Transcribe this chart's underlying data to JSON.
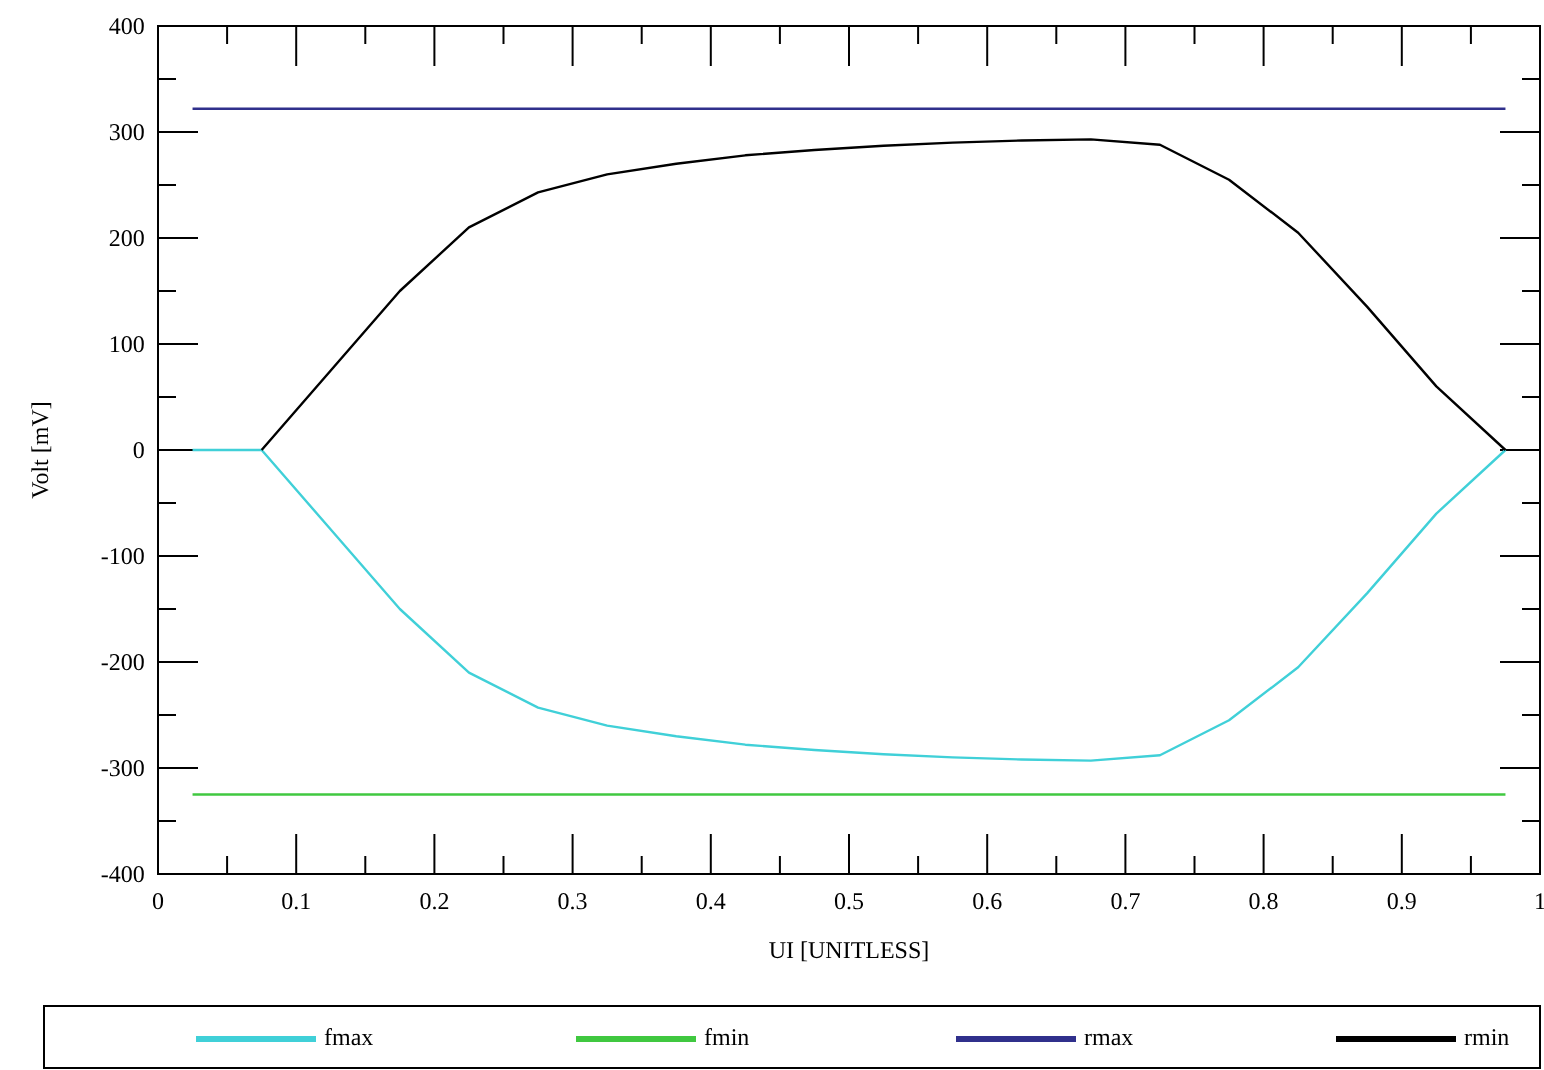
{
  "chart_data": {
    "type": "line",
    "xlabel": "UI [UNITLESS]",
    "ylabel": "Volt [mV]",
    "xlim": [
      0,
      1
    ],
    "ylim": [
      -400,
      400
    ],
    "xticks": [
      0,
      {
        "value": 0.05,
        "label": null
      },
      0.1,
      {
        "value": 0.15,
        "label": null
      },
      0.2,
      {
        "value": 0.25,
        "label": null
      },
      0.3,
      {
        "value": 0.35,
        "label": null
      },
      0.4,
      {
        "value": 0.45,
        "label": null
      },
      0.5,
      {
        "value": 0.55,
        "label": null
      },
      0.6,
      {
        "value": 0.65,
        "label": null
      },
      0.7,
      {
        "value": 0.75,
        "label": null
      },
      0.8,
      {
        "value": 0.85,
        "label": null
      },
      0.9,
      {
        "value": 0.95,
        "label": null
      },
      1
    ],
    "yticks": [
      -400,
      {
        "value": -350,
        "label": null
      },
      -300,
      {
        "value": -250,
        "label": null
      },
      -200,
      {
        "value": -150,
        "label": null
      },
      -100,
      {
        "value": -50,
        "label": null
      },
      0,
      {
        "value": 50,
        "label": null
      },
      100,
      {
        "value": 150,
        "label": null
      },
      200,
      {
        "value": 250,
        "label": null
      },
      300,
      {
        "value": 350,
        "label": null
      },
      400
    ],
    "grid": false,
    "legend": "bottom",
    "marker": "none",
    "line_style": "solid",
    "series": [
      {
        "name": "fmax",
        "color": "#40d0d8",
        "x": [
          0.025,
          0.075,
          0.125,
          0.175,
          0.225,
          0.275,
          0.325,
          0.375,
          0.425,
          0.475,
          0.525,
          0.575,
          0.625,
          0.675,
          0.725,
          0.775,
          0.825,
          0.875,
          0.925,
          0.975
        ],
        "values": [
          0,
          0,
          -75,
          -150,
          -210,
          -243,
          -260,
          -270,
          -278,
          -283,
          -287,
          -290,
          -292,
          -293,
          -288,
          -255,
          -205,
          -135,
          -60,
          0
        ]
      },
      {
        "name": "fmin",
        "color": "#40c840",
        "x": [
          0.025,
          0.975
        ],
        "values": [
          -325,
          -325
        ]
      },
      {
        "name": "rmax",
        "color": "#30308c",
        "x": [
          0.025,
          0.975
        ],
        "values": [
          322,
          322
        ]
      },
      {
        "name": "rmin",
        "color": "#000000",
        "x": [
          0.075,
          0.125,
          0.175,
          0.225,
          0.275,
          0.325,
          0.375,
          0.425,
          0.475,
          0.525,
          0.575,
          0.625,
          0.675,
          0.725,
          0.775,
          0.825,
          0.875,
          0.925,
          0.975
        ],
        "values": [
          0,
          75,
          150,
          210,
          243,
          260,
          270,
          278,
          283,
          287,
          290,
          292,
          293,
          288,
          255,
          205,
          135,
          60,
          0
        ]
      }
    ]
  }
}
